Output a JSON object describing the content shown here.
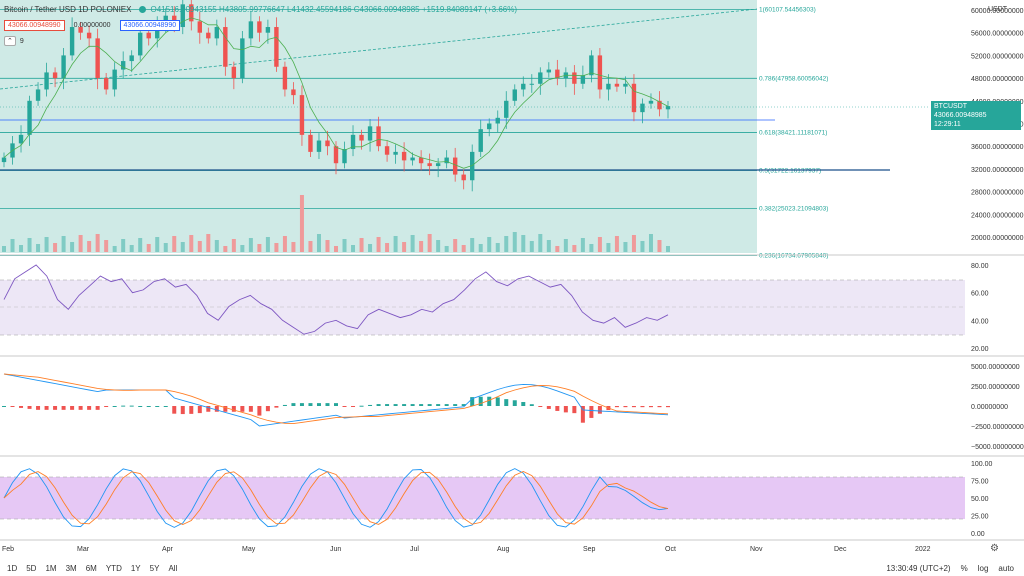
{
  "legend": {
    "title": "Bitcoin / Tether USD  1D  POLONIEX",
    "ohlc": "O41516.00943155  H43805.99776647  L41432.45594186  C43066.00948985  +1519.84089147 (+3.66%)",
    "sell_price": "43066.00948990",
    "spread": "0.00000000",
    "buy_price": "43066.00948990",
    "indicator_label": "9"
  },
  "quote_currency": "USDT",
  "last_price": {
    "label": "BTCUSDT",
    "value": "43066.00948985",
    "countdown": "12:29:11"
  },
  "price_axis": {
    "ticks": [
      "60000.00000000",
      "56000.00000000",
      "52000.00000000",
      "48000.00000000",
      "44000.00000000",
      "40000.00000000",
      "36000.00000000",
      "32000.00000000",
      "28000.00000000",
      "24000.00000000",
      "20000.00000000"
    ]
  },
  "fib_levels": [
    {
      "label": "1(60107.54456303)",
      "price": 60107.54
    },
    {
      "label": "0.786(47958.60056042)",
      "price": 47958.6
    },
    {
      "label": "0.618(38421.11181071)",
      "price": 38421.11
    },
    {
      "label": "0.5(31722.16137937)",
      "price": 31722.16
    },
    {
      "label": "0.382(25023.21094803)",
      "price": 25023.21
    },
    {
      "label": "0.236(16734.67905840)",
      "price": 16734.68
    }
  ],
  "rsi_axis": {
    "ticks": [
      "80.00",
      "60.00",
      "40.00",
      "20.00"
    ]
  },
  "macd_axis": {
    "ticks": [
      "5000.00000000",
      "2500.00000000",
      "0.00000000",
      "−2500.00000000",
      "−5000.00000000"
    ]
  },
  "stoch_axis": {
    "ticks": [
      "100.00",
      "75.00",
      "50.00",
      "25.00",
      "0.00"
    ]
  },
  "time_axis": {
    "labels": [
      "Feb",
      "Mar",
      "Apr",
      "May",
      "Jun",
      "Jul",
      "Aug",
      "Sep",
      "Oct",
      "Nov",
      "Dec",
      "2022"
    ]
  },
  "bottom_bar": {
    "ranges": [
      "1D",
      "5D",
      "1M",
      "3M",
      "6M",
      "YTD",
      "1Y",
      "5Y",
      "All"
    ],
    "clock": "13:30:49 (UTC+2)",
    "percent": "%",
    "log": "log",
    "auto": "auto"
  },
  "colors": {
    "up": "#26a69a",
    "down": "#ef5350",
    "fib_fill": "#cfeae6",
    "rsi_fill": "#ede7f6",
    "stoch_fill": "#e6c8f5",
    "ma": "#4caf50",
    "rsi_line": "#7e57c2",
    "macd_line": "#2196f3",
    "signal_line": "#ff7f27"
  },
  "chart_data": {
    "type": "candlestick",
    "x_range": [
      "Feb",
      "2022"
    ],
    "price_range": [
      18000,
      62000
    ],
    "close_series": [
      34000,
      36500,
      38000,
      44000,
      46000,
      49000,
      48000,
      52000,
      57000,
      56000,
      55000,
      48000,
      46000,
      49500,
      51000,
      52000,
      56000,
      55000,
      58000,
      59000,
      57000,
      61000,
      58000,
      56000,
      55000,
      57000,
      50000,
      48000,
      55000,
      58000,
      56000,
      57000,
      50000,
      46000,
      45000,
      38000,
      35000,
      37000,
      36000,
      33000,
      35500,
      38000,
      37000,
      39500,
      36000,
      34500,
      35000,
      33500,
      34000,
      33000,
      32500,
      33000,
      34000,
      31000,
      30000,
      35000,
      39000,
      40000,
      41000,
      44000,
      46000,
      47000,
      47000,
      49000,
      49500,
      48000,
      49000,
      47000,
      48500,
      52000,
      46000,
      47000,
      46500,
      47000,
      42000,
      43500,
      44000,
      42500,
      43066
    ],
    "rsi_series": [
      55,
      70,
      75,
      80,
      72,
      55,
      48,
      58,
      65,
      72,
      68,
      70,
      60,
      62,
      68,
      70,
      64,
      66,
      58,
      45,
      40,
      50,
      55,
      58,
      52,
      48,
      40,
      35,
      30,
      32,
      38,
      40,
      36,
      34,
      44,
      48,
      45,
      42,
      44,
      48,
      46,
      52,
      55,
      62,
      70,
      75,
      68,
      65,
      70,
      72,
      68,
      64,
      66,
      58,
      46,
      40,
      38,
      42,
      35,
      38,
      42,
      40,
      44
    ],
    "rsi_range": [
      20,
      85
    ],
    "macd_range": [
      -5500,
      6000
    ],
    "stoch_range": [
      0,
      100
    ]
  }
}
